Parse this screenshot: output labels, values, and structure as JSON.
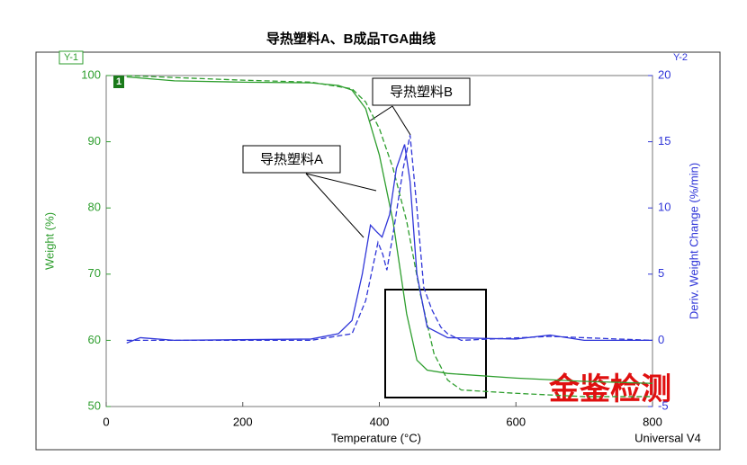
{
  "chart_data": {
    "type": "line",
    "title": "导热塑料A、B成品TGA曲线",
    "x_label": "Temperature (°C)",
    "y_label": "Weight (%)",
    "y2_label": "Deriv. Weight Change (%/min)",
    "axis_tags": [
      "Y-1",
      "Y-2"
    ],
    "curve_tag": "1",
    "annotations": [
      "导热塑料A",
      "导热塑料B"
    ],
    "watermarks": [
      "金鉴检测",
      "Universal V4"
    ],
    "xlim": [
      0,
      800
    ],
    "xticks": [
      0,
      200,
      400,
      600,
      800
    ],
    "ylim": [
      50,
      100
    ],
    "yticks": [
      50,
      60,
      70,
      80,
      90,
      100
    ],
    "y2lim": [
      -5,
      20
    ],
    "y2ticks": [
      -5,
      0,
      5,
      10,
      15,
      20
    ],
    "y_color": "#2e9e2e",
    "y2_color": "#2f35d8",
    "series": [
      {
        "name": "导热塑料A",
        "color": "#2e9e2e",
        "style": "solid",
        "axis": "y",
        "x": [
          30,
          100,
          200,
          300,
          340,
          360,
          380,
          400,
          420,
          440,
          455,
          470,
          500,
          600,
          700,
          800
        ],
        "values": [
          99.8,
          99.2,
          99.0,
          98.9,
          98.5,
          97.8,
          95,
          88,
          78,
          64,
          57,
          55.5,
          55,
          54.3,
          53.8,
          53.5
        ]
      },
      {
        "name": "导热塑料B",
        "color": "#2e9e2e",
        "style": "dashed",
        "axis": "y",
        "x": [
          30,
          100,
          200,
          300,
          360,
          380,
          400,
          420,
          440,
          460,
          480,
          500,
          520,
          600,
          700,
          800
        ],
        "values": [
          100,
          99.7,
          99.3,
          99,
          98,
          96,
          92,
          86,
          78,
          67,
          58,
          54,
          52.5,
          52,
          51.5,
          51.5
        ]
      },
      {
        "name": "导热塑料A",
        "color": "#2f35d8",
        "style": "solid",
        "axis": "y2",
        "x": [
          30,
          50,
          100,
          300,
          340,
          360,
          375,
          387,
          396,
          404,
          415,
          425,
          437,
          445,
          455,
          470,
          500,
          600,
          650,
          700,
          800
        ],
        "values": [
          -0.2,
          0.2,
          0,
          0.1,
          0.5,
          1.5,
          5,
          8.7,
          8.2,
          7.8,
          9.5,
          13,
          14.8,
          12,
          5,
          1,
          0.2,
          0.1,
          0.4,
          0,
          0
        ]
      },
      {
        "name": "导热塑料B",
        "color": "#2f35d8",
        "style": "dashed",
        "axis": "y2",
        "x": [
          30,
          100,
          300,
          360,
          380,
          398,
          405,
          411,
          420,
          435,
          445,
          455,
          465,
          477,
          490,
          500,
          520,
          650,
          800
        ],
        "values": [
          0,
          0,
          0,
          0.5,
          3,
          7.4,
          6.5,
          5.3,
          8,
          13,
          15.5,
          10,
          4,
          2.3,
          1,
          0.5,
          0,
          0.3,
          0
        ]
      }
    ]
  }
}
